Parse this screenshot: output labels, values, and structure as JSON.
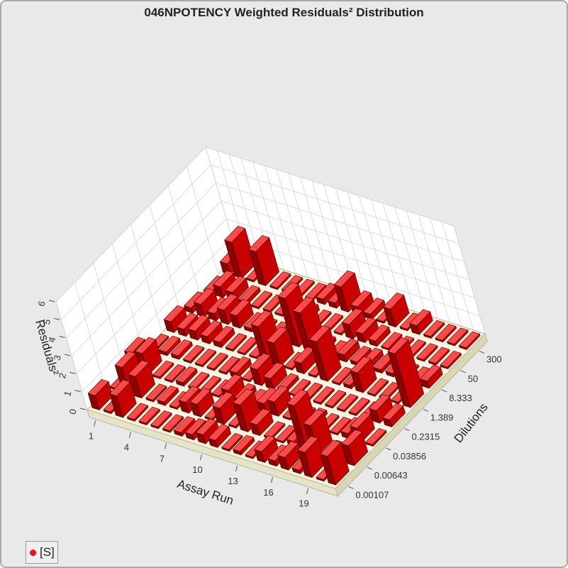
{
  "window": {
    "title": "046NPOTENCY Weighted Residuals² Distribution"
  },
  "legend": {
    "items": [
      {
        "label": "[S]",
        "color": "#ee1111"
      }
    ]
  },
  "colors": {
    "floor": "#f4f2d9",
    "grid": "#dcdcdc",
    "bar_top": "#ff4a4a",
    "bar_right": "#c80000",
    "bar_front": "#8c0000",
    "bar_edge": "#3a0000"
  },
  "chart_data": {
    "type": "bar3d",
    "title": "046NPOTENCY Weighted Residuals² Distribution",
    "xlabel": "Assay Run",
    "ylabel": "Dilutions",
    "zlabel": "Residuals²",
    "x_tick_labels": [
      "1",
      "4",
      "7",
      "10",
      "13",
      "16",
      "19"
    ],
    "y_tick_labels": [
      "0.00107",
      "0.00643",
      "0.03856",
      "0.2315",
      "1.389",
      "8.333",
      "50",
      "300"
    ],
    "z_tick_labels": [
      "0",
      "1",
      "2",
      "3",
      "4",
      "5",
      "6"
    ],
    "zlim": [
      0,
      6
    ],
    "x_runs": 21,
    "grid": true,
    "legend_position": "bottom-left",
    "series": [
      {
        "name": "[S]",
        "dilutions": [
          "0.00107",
          "0.00643",
          "0.03856",
          "0.2315",
          "1.389",
          "8.333",
          "50",
          "300"
        ],
        "values": [
          [
            0.8,
            0.1,
            1.2,
            0.1,
            0.1,
            0.1,
            0.1,
            0.2,
            0.3,
            0.5,
            0.4,
            0.1,
            0.2,
            0.1,
            0.6,
            0.3,
            0.7,
            0.2,
            1.4,
            0.1,
            1.6
          ],
          [
            0.1,
            1.5,
            1.2,
            0.1,
            0.2,
            0.1,
            0.6,
            0.7,
            0.1,
            0.9,
            0.1,
            1.5,
            0.6,
            0.1,
            0.1,
            0.3,
            2.5,
            1.6,
            0.1,
            0.4,
            1.1
          ],
          [
            1.0,
            1.2,
            0.1,
            0.1,
            0.2,
            0.1,
            0.1,
            0.1,
            0.6,
            0.3,
            0.2,
            0.5,
            0.8,
            0.1,
            0.1,
            0.2,
            0.1,
            0.1,
            0.3,
            0.8,
            0.1
          ],
          [
            0.1,
            0.2,
            0.2,
            0.1,
            0.1,
            0.1,
            0.1,
            0.3,
            0.1,
            0.9,
            0.6,
            0.2,
            0.1,
            0.1,
            0.1,
            0.1,
            0.1,
            0.1,
            0.1,
            0.7,
            0.4
          ],
          [
            0.6,
            0.4,
            0.5,
            0.4,
            0.3,
            0.1,
            0.1,
            0.1,
            2.0,
            1.3,
            0.1,
            0.6,
            0.1,
            2.2,
            0.1,
            0.2,
            1.1,
            0.1,
            0.1,
            0.1,
            3.0
          ],
          [
            0.3,
            0.7,
            0.4,
            0.8,
            0.7,
            0.2,
            0.1,
            0.1,
            0.2,
            2.7,
            2.1,
            0.2,
            0.1,
            0.4,
            0.2,
            0.3,
            0.2,
            0.2,
            0.1,
            0.1,
            0.4
          ],
          [
            0.1,
            0.6,
            0.5,
            0.2,
            0.1,
            0.1,
            0.1,
            0.1,
            0.3,
            0.1,
            0.1,
            0.1,
            0.8,
            0.5,
            0.3,
            0.1,
            0.1,
            0.1,
            0.1,
            0.1,
            0.1
          ],
          [
            0.6,
            2.0,
            0.1,
            1.9,
            0.1,
            0.1,
            0.1,
            0.1,
            0.3,
            0.3,
            1.4,
            0.5,
            0.3,
            0.1,
            1.0,
            0.1,
            0.5,
            0.1,
            0.1,
            0.1,
            0.1
          ]
        ]
      }
    ]
  }
}
